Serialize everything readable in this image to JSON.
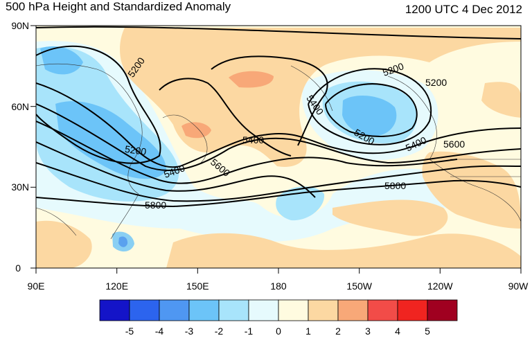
{
  "header": {
    "title": "500 hPa Height and Standardized Anomaly",
    "datetime": "1200 UTC 4 Dec 2012"
  },
  "axes": {
    "lat_labels": [
      "90N",
      "60N",
      "30N",
      "0"
    ],
    "lon_labels": [
      "90E",
      "120E",
      "150E",
      "180",
      "150W",
      "120W",
      "90W"
    ]
  },
  "contours": {
    "labels": [
      "5200",
      "5200",
      "5200",
      "5200",
      "5400",
      "5400",
      "5400",
      "5400",
      "5600",
      "5600",
      "5800",
      "5800"
    ]
  },
  "colorbar": {
    "tick_labels": [
      "-5",
      "-4",
      "-3",
      "-2",
      "-1",
      "0",
      "1",
      "2",
      "3",
      "4",
      "5"
    ],
    "colors": [
      "#1414c8",
      "#2c64ee",
      "#4f97f2",
      "#6cc4f8",
      "#a8e4fb",
      "#e6fafd",
      "#fffbe0",
      "#fcd8a2",
      "#f8a878",
      "#f24c48",
      "#f02420",
      "#a00020"
    ]
  },
  "anomaly_colors": {
    "neg3": "#6cc4f8",
    "neg2": "#a8e4fb",
    "neg1": "#e6fafd",
    "pos1": "#fffbe0",
    "pos2": "#fcd8a2",
    "pos3": "#f8a878",
    "neg5": "#1414c8"
  }
}
